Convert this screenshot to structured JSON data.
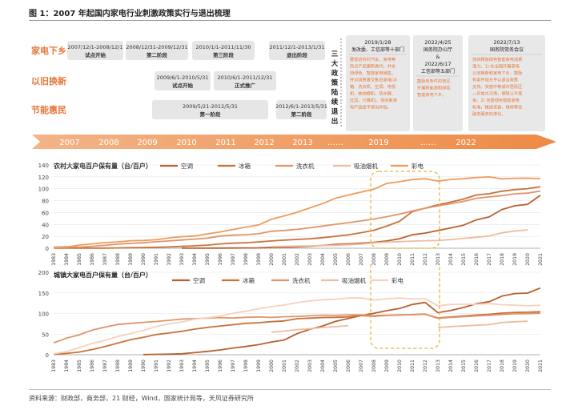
{
  "figure": {
    "title": "图 1：2007 年起国内家电行业刺激政策实行与退出梳理",
    "source": "资料来源：财政部，商务部，21 财经，Wind，国家统计局等，天风证券研究所"
  },
  "timeline": {
    "rows": [
      {
        "label": "家电下乡",
        "boxes": [
          {
            "date": "2007/12/1-2008/12/1",
            "phase": "试点开始"
          },
          {
            "date": "2008/12/31-2009/12/31",
            "phase": "第二阶段"
          },
          {
            "date": "2010/1/1-2011/11/30",
            "phase": "第三阶段"
          },
          {
            "date": "2011/12/1-2013/1/31",
            "phase": "退出阶段"
          }
        ]
      },
      {
        "label": "以旧换新",
        "boxes": [
          {
            "date": "2009/6/1-2010/5/31",
            "phase": "试点开始"
          },
          {
            "date": "2010/6/1-2011/12/31",
            "phase": "正式推广"
          }
        ]
      },
      {
        "label": "节能惠民",
        "boxes": [
          {
            "date": "2009/5/21-2012/5/31",
            "phase": "第一阶段"
          },
          {
            "date": "2012/6/1-2013/5/31",
            "phase": "第二阶段"
          }
        ]
      }
    ],
    "exit_label": "三大政策陆续退出",
    "policies": [
      {
        "date": "2019/1/28",
        "agency": "发改委、工信部等十部门",
        "lines": [
          "要促进农村汽车、家电等",
          "热点产品更新换代，并支",
          "持绿色、智能家电销售。",
          "并对消费者交售旧家电(冰",
          "箱、洗衣机、空调、电视",
          "机、抽油烟机、热水器、",
          "灶具、计算机)，购买新家",
          "电产品给予适当补贴。"
        ]
      },
      {
        "date": "2022/4/25",
        "agency": "国务院办公厅",
        "amp": "&",
        "date2": "2022/6/17",
        "agency2": "工信部等五部门",
        "lines": [
          "鼓励有条件的地区",
          "开展新能源和绿色",
          "智能家电下乡。"
        ]
      },
      {
        "date": "2022/7/13",
        "agency": "国务院常务会议",
        "lines": [
          "加快释放绿色智能家电消费",
          "潜力。1) 在全国开展家电",
          "以旧换新和家电下乡，鼓励",
          "有条件地方予以适当政策",
          "支持。实施中等城市居民区",
          "—开放大市场，保障公平竞",
          "争。2) 完善绿色智能家电",
          "标准，推进安装、维修等会",
          "融务服务标准化。"
        ]
      }
    ],
    "axis_years": [
      "2007",
      "2008",
      "2009",
      "2010",
      "2011",
      "2012",
      "2013",
      "……",
      "2019",
      "……",
      "2022"
    ]
  },
  "chart_data": [
    {
      "type": "line",
      "title": "农村大家电百户保有量（台/百户）",
      "x": [
        1983,
        1984,
        1985,
        1986,
        1987,
        1988,
        1989,
        1990,
        1991,
        1992,
        1993,
        1994,
        1995,
        1996,
        1997,
        1998,
        1999,
        2000,
        2001,
        2002,
        2003,
        2004,
        2005,
        2006,
        2007,
        2008,
        2009,
        2010,
        2011,
        2012,
        2013,
        2014,
        2015,
        2016,
        2017,
        2018,
        2019,
        2020,
        2021
      ],
      "ylim": [
        0,
        140
      ],
      "yticks": [
        0,
        20,
        40,
        60,
        80,
        100,
        120,
        140
      ],
      "legend_position": "top",
      "highlight": [
        2008,
        2013
      ],
      "series": [
        {
          "name": "空调",
          "color": "#b8602e",
          "values": [
            null,
            null,
            null,
            null,
            null,
            null,
            null,
            null,
            null,
            null,
            0.1,
            0.2,
            0.2,
            0.3,
            0.4,
            0.6,
            0.7,
            1.3,
            1.7,
            2.3,
            3.4,
            4.7,
            6.4,
            7.3,
            8.5,
            9.8,
            12.2,
            16.0,
            22.6,
            25.4,
            29.8,
            34.2,
            38.8,
            47.6,
            52.6,
            65.2,
            71.3,
            73.8,
            89.0
          ]
        },
        {
          "name": "冰箱",
          "color": "#c9713a",
          "values": [
            0.1,
            0.2,
            0.1,
            0.2,
            0.3,
            0.6,
            0.9,
            1.2,
            1.6,
            2.2,
            3.1,
            4.0,
            5.2,
            7.3,
            8.5,
            9.3,
            10.6,
            12.3,
            13.6,
            14.8,
            15.9,
            17.8,
            20.1,
            22.5,
            26.1,
            30.2,
            37.1,
            45.2,
            61.5,
            67.3,
            72.9,
            77.6,
            82.6,
            89.5,
            91.7,
            95.9,
            98.6,
            100.1,
            103.5
          ]
        },
        {
          "name": "洗衣机",
          "color": "#e0946a",
          "values": [
            1.9,
            2.4,
            1.9,
            3.2,
            4.8,
            6.8,
            8.2,
            9.1,
            10.9,
            12.2,
            13.8,
            15.3,
            16.9,
            20.5,
            21.9,
            22.8,
            24.3,
            28.6,
            29.9,
            31.8,
            34.3,
            37.3,
            40.2,
            43.0,
            45.9,
            49.1,
            53.1,
            57.3,
            62.6,
            67.2,
            71.2,
            74.8,
            78.8,
            84.0,
            86.3,
            88.5,
            91.6,
            92.6,
            96.1
          ]
        },
        {
          "name": "吸油烟机",
          "color": "#eebcA0",
          "values": [
            null,
            null,
            null,
            null,
            null,
            null,
            null,
            null,
            null,
            null,
            null,
            null,
            null,
            null,
            null,
            null,
            null,
            2.8,
            3.2,
            3.5,
            4.1,
            4.5,
            5.0,
            5.8,
            7.0,
            9.0,
            10.3,
            11.1,
            12.0,
            12.6,
            12.9,
            14.5,
            16.7,
            18.4,
            20.4,
            26.0,
            29.0,
            31.0,
            null
          ]
        },
        {
          "name": "彩电",
          "color": "#f09a5b",
          "values": [
            0.8,
            1.7,
            5.4,
            7.3,
            9.4,
            10.6,
            12.6,
            13.0,
            14.3,
            17.3,
            19.5,
            20.5,
            24.1,
            27.4,
            31.5,
            35.6,
            39.2,
            48.7,
            54.4,
            60.5,
            67.8,
            75.1,
            84.0,
            89.4,
            94.4,
            99.2,
            108.9,
            111.8,
            115.5,
            116.9,
            112.9,
            115.6,
            116.9,
            118.8,
            120.0,
            116.6,
            117.6,
            117.8,
            117.0
          ]
        }
      ]
    },
    {
      "type": "line",
      "title": "城镇大家电百户保有量（台/百户）",
      "x": [
        1983,
        1984,
        1985,
        1986,
        1987,
        1988,
        1989,
        1990,
        1991,
        1992,
        1993,
        1994,
        1995,
        1996,
        1997,
        1998,
        1999,
        2000,
        2001,
        2002,
        2003,
        2004,
        2005,
        2006,
        2007,
        2008,
        2009,
        2010,
        2011,
        2012,
        2013,
        2014,
        2015,
        2016,
        2017,
        2018,
        2019,
        2020,
        2021
      ],
      "ylim": [
        0,
        200
      ],
      "yticks": [
        0,
        50,
        100,
        150,
        200
      ],
      "legend_position": "top",
      "highlight": [
        2008,
        2013
      ],
      "series": [
        {
          "name": "空调",
          "color": "#b8602e",
          "values": [
            null,
            null,
            null,
            null,
            null,
            null,
            null,
            0.3,
            1.0,
            1.4,
            2.3,
            5.0,
            8.1,
            11.6,
            16.3,
            20.0,
            24.5,
            30.8,
            35.8,
            51.1,
            61.8,
            69.8,
            80.7,
            87.8,
            95.1,
            100.3,
            106.8,
            112.1,
            122.0,
            126.8,
            102.2,
            107.4,
            114.6,
            123.7,
            128.6,
            142.2,
            148.3,
            149.6,
            161.7
          ]
        },
        {
          "name": "冰箱",
          "color": "#c9713a",
          "values": [
            1.7,
            3.2,
            6.6,
            12.7,
            19.9,
            28.1,
            36.5,
            42.3,
            49.0,
            52.6,
            56.7,
            62.1,
            66.2,
            69.7,
            72.9,
            76.1,
            77.7,
            80.1,
            81.9,
            87.4,
            88.7,
            90.2,
            90.7,
            91.8,
            95.0,
            93.6,
            95.4,
            96.6,
            97.2,
            98.5,
            89.2,
            91.7,
            94.0,
            96.4,
            98.0,
            100.9,
            102.5,
            103.1,
            104.2
          ]
        },
        {
          "name": "洗衣机",
          "color": "#e0946a",
          "values": [
            29.0,
            40.1,
            48.3,
            59.7,
            67.0,
            73.4,
            76.2,
            78.4,
            80.6,
            83.4,
            86.4,
            87.3,
            89.0,
            90.1,
            89.1,
            90.6,
            91.4,
            90.5,
            92.2,
            92.9,
            94.4,
            95.9,
            95.5,
            96.8,
            96.8,
            94.7,
            96.0,
            96.9,
            97.1,
            98.0,
            88.4,
            90.7,
            92.3,
            94.2,
            95.7,
            97.7,
            99.2,
            99.7,
            100.5
          ]
        },
        {
          "name": "吸油烟机",
          "color": "#eebca0",
          "values": [
            null,
            null,
            null,
            null,
            null,
            null,
            null,
            null,
            null,
            null,
            null,
            null,
            null,
            null,
            null,
            null,
            null,
            54.1,
            57.4,
            61.0,
            62.9,
            66.2,
            67.9,
            70.5,
            null,
            null,
            null,
            null,
            null,
            null,
            66.1,
            68.4,
            69.9,
            71.5,
            73.0,
            78.1,
            80.0,
            81.3,
            null
          ]
        },
        {
          "name": "彩电",
          "color": "#f6d1bc",
          "values": [
            2.6,
            7.6,
            17.2,
            27.4,
            34.6,
            43.9,
            51.5,
            59.0,
            68.4,
            74.9,
            79.5,
            86.2,
            89.8,
            93.5,
            100.5,
            105.4,
            111.6,
            116.6,
            120.5,
            126.4,
            130.5,
            133.4,
            134.8,
            137.4,
            137.8,
            132.9,
            135.7,
            137.4,
            135.2,
            136.1,
            118.6,
            122.0,
            122.3,
            122.3,
            123.8,
            121.3,
            120.2,
            118.5,
            120.0
          ]
        }
      ]
    }
  ]
}
